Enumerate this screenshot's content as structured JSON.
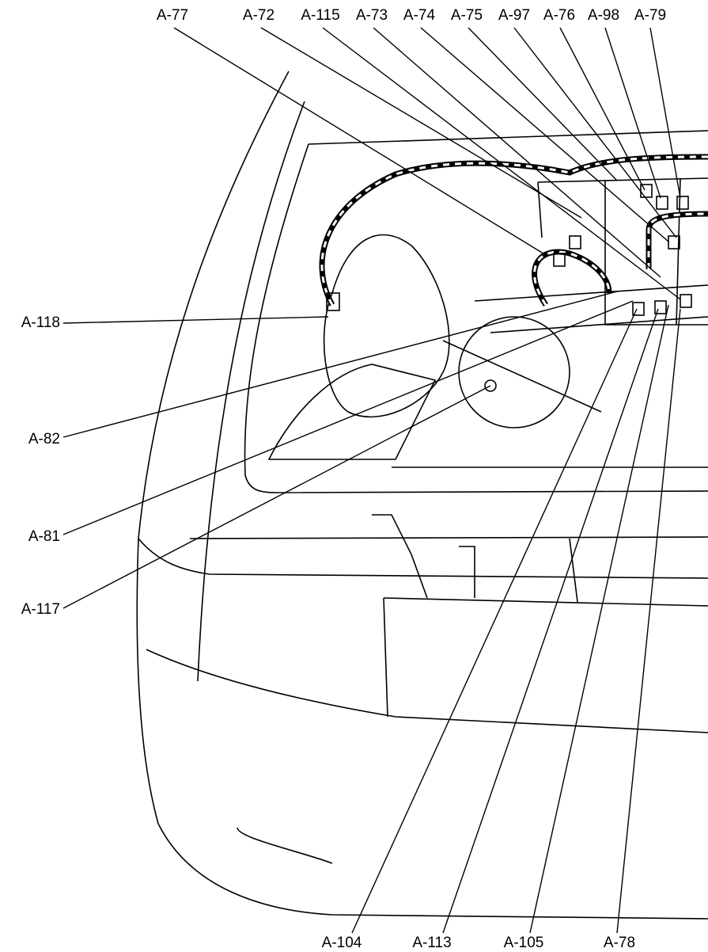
{
  "labels_top": [
    "A-77",
    "A-72",
    "A-115",
    "A-73",
    "A-74",
    "A-75",
    "A-97",
    "A-76",
    "A-98",
    "A-79"
  ],
  "labels_left": [
    "A-118",
    "A-82",
    "A-81",
    "A-117"
  ],
  "labels_bottom": [
    "A-104",
    "A-113",
    "A-105",
    "A-78"
  ]
}
